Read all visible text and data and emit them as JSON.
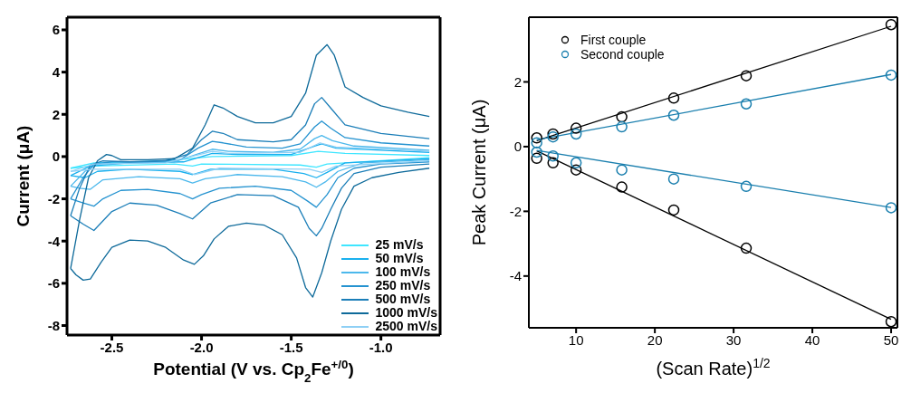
{
  "chart_data": [
    {
      "type": "line",
      "xlabel": "Potential (V vs. Cp$_{2}$Fe$^{+/0}$)",
      "ylabel": "Current (μA)",
      "xlim": [
        -2.75,
        -0.67
      ],
      "ylim": [
        -8.45,
        6.6
      ],
      "xticks": [
        -2.5,
        {
          "value": -2,
          "label": "-2.0"
        },
        -1.5,
        {
          "value": -1,
          "label": "-1.0"
        }
      ],
      "yticks": [
        -8,
        -6,
        -4,
        -2,
        0,
        2,
        4,
        6
      ],
      "grid": false,
      "legend": "bottom right",
      "marker": "none",
      "line_style": "solid",
      "series": [
        {
          "name": "25 mV/s",
          "color": "#3fe6ff",
          "x": [
            -2.73,
            -2.6,
            -2.2,
            -1.94,
            -1.5,
            -1.35,
            -1.2,
            -0.73
          ],
          "values": [
            -0.55,
            -0.3,
            -0.2,
            0.0,
            0.05,
            0.25,
            0.15,
            0.05
          ]
        },
        {
          "color": "#3fe6ff",
          "x": [
            -0.73,
            -1.3,
            -1.36,
            -1.45,
            -2.0,
            -2.05,
            -2.15,
            -2.6,
            -2.73
          ],
          "values": [
            -0.05,
            -0.35,
            -0.5,
            -0.4,
            -0.35,
            -0.45,
            -0.35,
            -0.45,
            -0.55
          ]
        },
        {
          "name": "50 mV/s",
          "color": "#1ab0ee",
          "x": [
            -2.73,
            -2.62,
            -2.4,
            -2.1,
            -1.94,
            -1.8,
            -1.5,
            -1.37,
            -1.33,
            -1.25,
            -0.73
          ],
          "values": [
            -0.9,
            -0.45,
            -0.3,
            -0.25,
            0.15,
            0.1,
            0.1,
            0.5,
            0.6,
            0.4,
            0.2
          ]
        },
        {
          "color": "#1ab0ee",
          "x": [
            -0.73,
            -1.2,
            -1.3,
            -1.36,
            -1.43,
            -1.6,
            -1.95,
            -2.05,
            -2.12,
            -2.4,
            -2.58,
            -2.65,
            -2.73
          ],
          "values": [
            -0.1,
            -0.3,
            -0.75,
            -1.0,
            -0.8,
            -0.6,
            -0.6,
            -0.85,
            -0.7,
            -0.6,
            -0.7,
            -1.0,
            -0.9
          ]
        },
        {
          "name": "100 mV/s",
          "color": "#4cb8ec",
          "x": [
            -2.73,
            -2.65,
            -2.58,
            -2.4,
            -2.15,
            -2.03,
            -1.94,
            -1.85,
            -1.6,
            -1.45,
            -1.37,
            -1.33,
            -1.27,
            -1.15,
            -0.73
          ],
          "values": [
            -1.4,
            -0.7,
            -0.35,
            -0.3,
            -0.25,
            0.1,
            0.35,
            0.25,
            0.2,
            0.35,
            0.85,
            1.0,
            0.75,
            0.5,
            0.3
          ]
        },
        {
          "color": "#4cb8ec",
          "x": [
            -0.73,
            -1.1,
            -1.24,
            -1.31,
            -1.36,
            -1.42,
            -1.55,
            -1.8,
            -1.98,
            -2.05,
            -2.12,
            -2.35,
            -2.55,
            -2.62,
            -2.68,
            -2.73
          ],
          "values": [
            -0.15,
            -0.3,
            -0.7,
            -1.2,
            -1.45,
            -1.2,
            -0.95,
            -0.85,
            -1.05,
            -1.25,
            -1.05,
            -0.95,
            -1.1,
            -1.55,
            -1.5,
            -1.4
          ]
        },
        {
          "name": "250 mV/s",
          "color": "#2593d0",
          "x": [
            -2.73,
            -2.66,
            -2.6,
            -2.5,
            -2.3,
            -2.12,
            -2.02,
            -1.94,
            -1.88,
            -1.75,
            -1.55,
            -1.45,
            -1.37,
            -1.33,
            -1.28,
            -1.2,
            -1.0,
            -0.73
          ],
          "values": [
            -2.0,
            -1.0,
            -0.35,
            -0.25,
            -0.25,
            -0.15,
            0.4,
            0.72,
            0.65,
            0.45,
            0.4,
            0.6,
            1.4,
            1.68,
            1.35,
            0.9,
            0.65,
            0.5
          ]
        },
        {
          "color": "#2593d0",
          "x": [
            -0.73,
            -1.0,
            -1.15,
            -1.24,
            -1.3,
            -1.36,
            -1.41,
            -1.5,
            -1.7,
            -1.9,
            -2.0,
            -2.05,
            -2.12,
            -2.3,
            -2.45,
            -2.55,
            -2.6,
            -2.66,
            -2.73
          ],
          "values": [
            -0.25,
            -0.35,
            -0.55,
            -1.0,
            -1.8,
            -2.4,
            -2.1,
            -1.6,
            -1.4,
            -1.5,
            -1.8,
            -2.0,
            -1.75,
            -1.55,
            -1.6,
            -2.0,
            -2.35,
            -2.2,
            -2.0
          ]
        },
        {
          "name": "500 mV/s",
          "color": "#1b7eb8",
          "x": [
            -2.73,
            -2.68,
            -2.62,
            -2.55,
            -2.4,
            -2.2,
            -2.08,
            -2.0,
            -1.94,
            -1.88,
            -1.8,
            -1.6,
            -1.5,
            -1.42,
            -1.37,
            -1.33,
            -1.28,
            -1.2,
            -1.0,
            -0.73
          ],
          "values": [
            -2.8,
            -1.5,
            -0.4,
            -0.2,
            -0.25,
            -0.2,
            0.1,
            0.8,
            1.2,
            1.1,
            0.8,
            0.7,
            0.8,
            1.5,
            2.5,
            2.8,
            2.3,
            1.5,
            1.1,
            0.85
          ]
        },
        {
          "color": "#1b7eb8",
          "x": [
            -0.73,
            -1.0,
            -1.15,
            -1.22,
            -1.28,
            -1.33,
            -1.36,
            -1.4,
            -1.46,
            -1.6,
            -1.8,
            -1.95,
            -2.05,
            -2.12,
            -2.25,
            -2.4,
            -2.5,
            -2.6,
            -2.66,
            -2.73
          ],
          "values": [
            -0.35,
            -0.5,
            -0.8,
            -1.5,
            -2.5,
            -3.4,
            -3.75,
            -3.4,
            -2.4,
            -1.85,
            -1.8,
            -2.2,
            -2.95,
            -2.7,
            -2.3,
            -2.2,
            -2.6,
            -3.5,
            -3.2,
            -2.8
          ]
        },
        {
          "name": "1000 mV/s",
          "color": "#0e6a9a",
          "x": [
            -2.73,
            -2.68,
            -2.63,
            -2.58,
            -2.53,
            -2.5,
            -2.45,
            -2.3,
            -2.15,
            -2.05,
            -1.98,
            -1.93,
            -1.88,
            -1.8,
            -1.7,
            -1.6,
            -1.5,
            -1.42,
            -1.36,
            -1.3,
            -1.26,
            -1.2,
            -1.1,
            -1.0,
            -0.85,
            -0.73
          ],
          "values": [
            -5.3,
            -3.0,
            -1.0,
            -0.2,
            0.1,
            0.05,
            -0.15,
            -0.15,
            -0.1,
            0.4,
            1.5,
            2.45,
            2.3,
            1.9,
            1.6,
            1.6,
            1.9,
            3.0,
            4.8,
            5.3,
            4.8,
            3.3,
            2.8,
            2.4,
            2.1,
            1.9
          ]
        },
        {
          "color": "#0e6a9a",
          "x": [
            -0.73,
            -0.9,
            -1.05,
            -1.15,
            -1.22,
            -1.28,
            -1.33,
            -1.38,
            -1.42,
            -1.47,
            -1.55,
            -1.65,
            -1.75,
            -1.85,
            -1.93,
            -1.99,
            -2.04,
            -2.1,
            -2.2,
            -2.3,
            -2.4,
            -2.5,
            -2.56,
            -2.62,
            -2.66,
            -2.7,
            -2.73
          ],
          "values": [
            -0.55,
            -0.75,
            -1.0,
            -1.4,
            -2.5,
            -4.0,
            -5.5,
            -6.65,
            -6.2,
            -4.8,
            -3.7,
            -3.25,
            -3.15,
            -3.3,
            -3.9,
            -4.7,
            -5.1,
            -4.9,
            -4.3,
            -4.0,
            -3.95,
            -4.3,
            -5.0,
            -5.8,
            -5.85,
            -5.6,
            -5.3
          ]
        },
        {
          "name": "2500 mV/s",
          "color": "#8fd0f5",
          "x": [
            -2.73,
            -2.6,
            -2.2,
            -1.94,
            -1.85,
            -1.45,
            -1.34,
            -1.25,
            -0.73
          ],
          "values": [
            -0.7,
            -0.35,
            -0.3,
            0.25,
            0.15,
            0.2,
            0.65,
            0.45,
            0.25
          ]
        },
        {
          "color": "#8fd0f5",
          "x": [
            -0.73,
            -1.25,
            -1.33,
            -1.4,
            -1.9,
            -2.04,
            -2.12,
            -2.6,
            -2.73
          ],
          "values": [
            -0.2,
            -0.45,
            -0.75,
            -0.6,
            -0.55,
            -0.85,
            -0.6,
            -0.6,
            -0.7
          ]
        }
      ]
    },
    {
      "type": "scatter",
      "xlabel": "(Scan Rate)$^{1/2}$",
      "ylabel": "Peak Current (μA)",
      "xlim": [
        4,
        50.8
      ],
      "ylim": [
        -5.6,
        4
      ],
      "xticks": [
        10,
        20,
        30,
        40,
        50
      ],
      "yticks": [
        -4,
        -2,
        0,
        2
      ],
      "grid": false,
      "legend": "top left",
      "marker": "circle",
      "series": [
        {
          "name": "First couple",
          "color": "#000000",
          "x": [
            5,
            7.07,
            10,
            15.8,
            22.4,
            31.6,
            50,
            5,
            7.07,
            10,
            15.8,
            22.4,
            31.6,
            50
          ],
          "values": [
            0.27,
            0.39,
            0.57,
            0.92,
            1.5,
            2.19,
            3.77,
            -0.36,
            -0.5,
            -0.72,
            -1.25,
            -1.96,
            -3.14,
            -5.41
          ]
        },
        {
          "name": "Second couple",
          "color": "#1a7fae",
          "x": [
            5,
            7.07,
            10,
            15.8,
            22.4,
            31.6,
            50,
            5,
            7.07,
            10,
            15.8,
            22.4,
            31.6,
            50
          ],
          "values": [
            0.12,
            0.3,
            0.39,
            0.61,
            0.97,
            1.32,
            2.21,
            -0.17,
            -0.29,
            -0.5,
            -0.72,
            -1.0,
            -1.23,
            -1.89
          ]
        },
        {
          "type": "line",
          "marker": "none",
          "color": "#000000",
          "x": [
            5,
            50
          ],
          "values": [
            0.18,
            3.72
          ]
        },
        {
          "type": "line",
          "marker": "none",
          "color": "#000000",
          "x": [
            5,
            50
          ],
          "values": [
            -0.13,
            -5.34
          ]
        },
        {
          "type": "line",
          "marker": "none",
          "color": "#1a7fae",
          "x": [
            5,
            50
          ],
          "values": [
            0.21,
            2.23
          ]
        },
        {
          "type": "line",
          "marker": "none",
          "color": "#1a7fae",
          "x": [
            5,
            50
          ],
          "values": [
            -0.12,
            -1.88
          ]
        }
      ]
    }
  ]
}
